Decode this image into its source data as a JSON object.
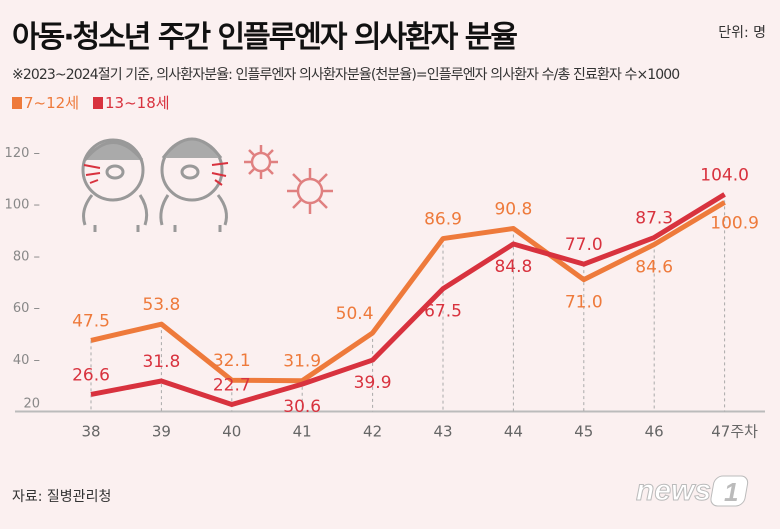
{
  "title": "아동·청소년 주간 인플루엔자 의사환자 분율",
  "unit": "단위: 명",
  "note": "※2023~2024절기 기준, 의사환자분율: 인플루엔자 의사환자분율(천분율)=인플루엔자 의사환자 수/총 진료환자 수×1000",
  "source": "자료: 질병관리청",
  "logo": "news1",
  "colors": {
    "orange": "#ee7a3b",
    "red": "#d8323e",
    "background": "#fbf0f0"
  },
  "illustration": {
    "icons": [
      "sneezing-kids",
      "virus-icon"
    ]
  },
  "chart_data": {
    "type": "line",
    "categories": [
      "38",
      "39",
      "40",
      "41",
      "42",
      "43",
      "44",
      "45",
      "46",
      "47주차"
    ],
    "series": [
      {
        "name": "7~12세",
        "color": "#ee7a3b",
        "values": [
          47.5,
          53.8,
          32.1,
          31.9,
          50.4,
          86.9,
          90.8,
          71.0,
          84.6,
          100.9
        ]
      },
      {
        "name": "13~18세",
        "color": "#d8323e",
        "values": [
          26.6,
          31.8,
          22.7,
          30.6,
          39.9,
          67.5,
          84.8,
          77.0,
          87.3,
          104.0
        ]
      }
    ],
    "yticks": [
      20,
      40,
      60,
      80,
      100,
      120
    ],
    "ylim": [
      20,
      120
    ],
    "grid": false,
    "legend": "top-left",
    "data_labels": true
  }
}
